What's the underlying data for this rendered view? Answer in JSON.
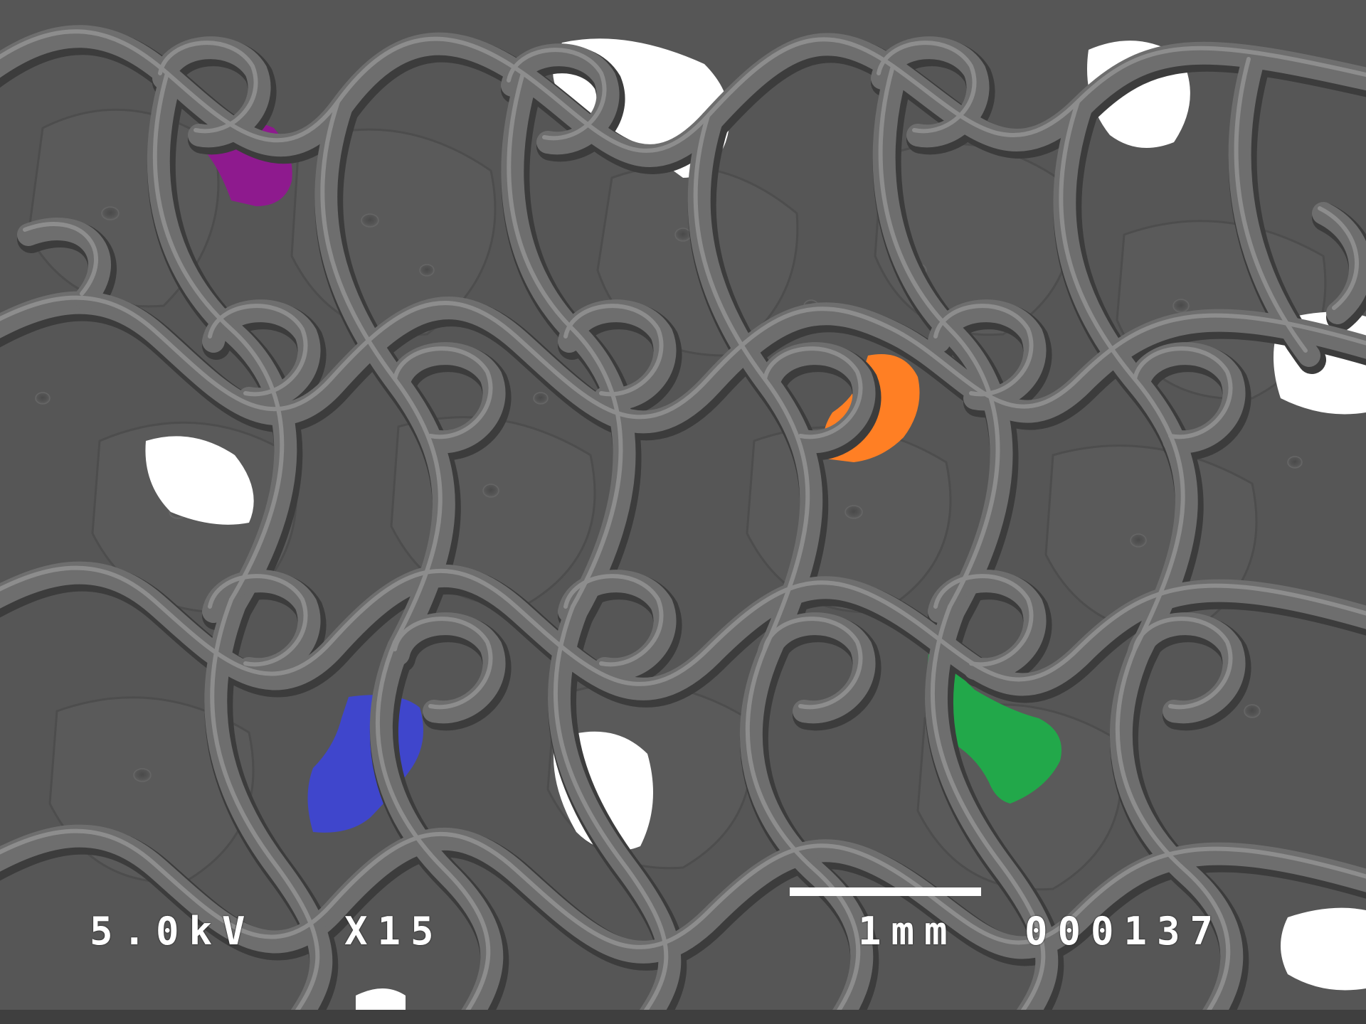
{
  "micrograph": {
    "voltage": "5.0kV",
    "magnification": "X15",
    "scale_bar_label": "1mm",
    "image_number": "000137",
    "scale_bar_fraction": 0.14,
    "colors": {
      "background": "#4f4f4f",
      "membrane": "#575757",
      "fiber": "#6b6b6b",
      "fiber_highlight": "#8a8a8a",
      "fiber_shadow": "#3a3a3a",
      "pore_white": "#ffffff",
      "pore_purple": "#8e1a8e",
      "pore_orange": "#ff7f24",
      "pore_blue": "#3f46cc",
      "pore_green": "#22a84a"
    },
    "highlighted_pores": [
      {
        "color_name": "purple"
      },
      {
        "color_name": "orange"
      },
      {
        "color_name": "blue"
      },
      {
        "color_name": "green"
      }
    ]
  }
}
